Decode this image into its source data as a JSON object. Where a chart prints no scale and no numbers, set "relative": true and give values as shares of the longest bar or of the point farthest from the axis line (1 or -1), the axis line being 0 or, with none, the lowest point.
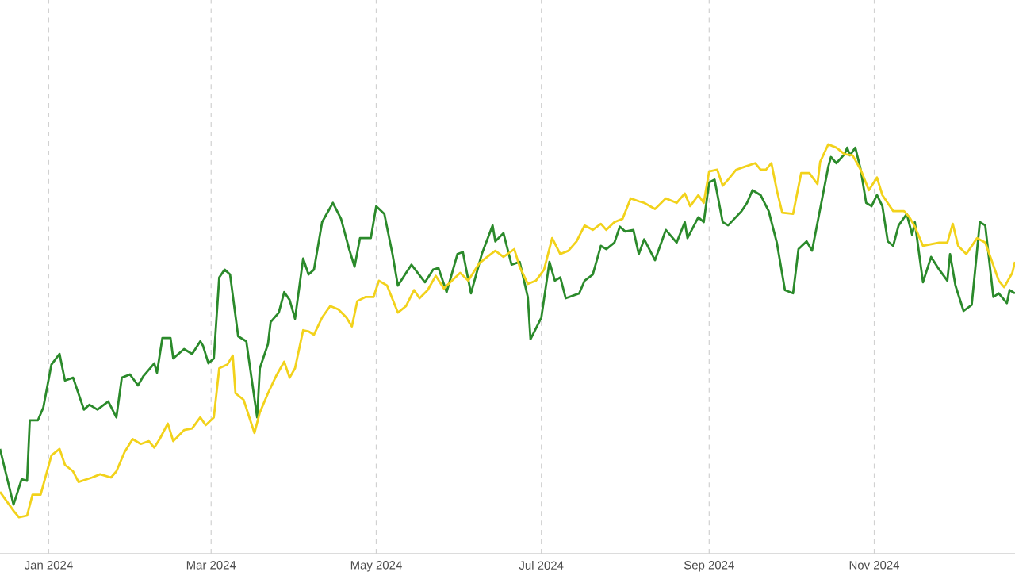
{
  "chart_data": {
    "type": "line",
    "relative": true,
    "grid": true,
    "xlim": [
      "2023-12-14",
      "2024-12-23"
    ],
    "xticks": [
      {
        "value": "2024-01-01",
        "label": "Jan 2024"
      },
      {
        "value": "2024-03-01",
        "label": "Mar 2024"
      },
      {
        "value": "2024-05-01",
        "label": "May 2024"
      },
      {
        "value": "2024-07-01",
        "label": "Jul 2024"
      },
      {
        "value": "2024-09-01",
        "label": "Sep 2024"
      },
      {
        "value": "2024-11-01",
        "label": "Nov 2024"
      }
    ],
    "series": [
      {
        "color": "#2b8a2b",
        "x": [
          "2023-12-14",
          "2023-12-16",
          "2023-12-19",
          "2023-12-22",
          "2023-12-24",
          "2023-12-25",
          "2023-12-28",
          "2023-12-30",
          "2024-01-02",
          "2024-01-05",
          "2024-01-07",
          "2024-01-10",
          "2024-01-14",
          "2024-01-16",
          "2024-01-19",
          "2024-01-23",
          "2024-01-26",
          "2024-01-28",
          "2024-01-31",
          "2024-02-03",
          "2024-02-05",
          "2024-02-09",
          "2024-02-10",
          "2024-02-12",
          "2024-02-15",
          "2024-02-16",
          "2024-02-20",
          "2024-02-23",
          "2024-02-26",
          "2024-02-27",
          "2024-02-29",
          "2024-03-02",
          "2024-03-04",
          "2024-03-06",
          "2024-03-08",
          "2024-03-11",
          "2024-03-14",
          "2024-03-18",
          "2024-03-19",
          "2024-03-22",
          "2024-03-23",
          "2024-03-26",
          "2024-03-28",
          "2024-03-30",
          "2024-04-01",
          "2024-04-04",
          "2024-04-06",
          "2024-04-08",
          "2024-04-11",
          "2024-04-15",
          "2024-04-18",
          "2024-04-21",
          "2024-04-23",
          "2024-04-25",
          "2024-04-29",
          "2024-05-01",
          "2024-05-04",
          "2024-05-07",
          "2024-05-09",
          "2024-05-14",
          "2024-05-19",
          "2024-05-22",
          "2024-05-24",
          "2024-05-27",
          "2024-05-31",
          "2024-06-02",
          "2024-06-05",
          "2024-06-09",
          "2024-06-13",
          "2024-06-14",
          "2024-06-17",
          "2024-06-20",
          "2024-06-23",
          "2024-06-26",
          "2024-06-27",
          "2024-06-29",
          "2024-07-01",
          "2024-07-04",
          "2024-07-06",
          "2024-07-08",
          "2024-07-10",
          "2024-07-15",
          "2024-07-17",
          "2024-07-20",
          "2024-07-23",
          "2024-07-25",
          "2024-07-28",
          "2024-07-30",
          "2024-08-01",
          "2024-08-04",
          "2024-08-06",
          "2024-08-08",
          "2024-08-12",
          "2024-08-16",
          "2024-08-20",
          "2024-08-23",
          "2024-08-24",
          "2024-08-28",
          "2024-08-30",
          "2024-09-01",
          "2024-09-03",
          "2024-09-06",
          "2024-09-08",
          "2024-09-13",
          "2024-09-15",
          "2024-09-17",
          "2024-09-20",
          "2024-09-23",
          "2024-09-26",
          "2024-09-29",
          "2024-10-02",
          "2024-10-04",
          "2024-10-07",
          "2024-10-09",
          "2024-10-12",
          "2024-10-15",
          "2024-10-16",
          "2024-10-18",
          "2024-10-21",
          "2024-10-22",
          "2024-10-23",
          "2024-10-25",
          "2024-10-27",
          "2024-10-29",
          "2024-10-31",
          "2024-11-02",
          "2024-11-04",
          "2024-11-06",
          "2024-11-08",
          "2024-11-10",
          "2024-11-13",
          "2024-11-15",
          "2024-11-16",
          "2024-11-19",
          "2024-11-22",
          "2024-11-25",
          "2024-11-28",
          "2024-11-29",
          "2024-12-01",
          "2024-12-04",
          "2024-12-07",
          "2024-12-10",
          "2024-12-12",
          "2024-12-15",
          "2024-12-17",
          "2024-12-20",
          "2024-12-21",
          "2024-12-23"
        ],
        "values": [
          0.256,
          0.201,
          0.12,
          0.182,
          0.178,
          0.326,
          0.326,
          0.357,
          0.462,
          0.488,
          0.423,
          0.43,
          0.352,
          0.364,
          0.352,
          0.372,
          0.333,
          0.43,
          0.438,
          0.411,
          0.434,
          0.465,
          0.442,
          0.527,
          0.527,
          0.477,
          0.5,
          0.488,
          0.519,
          0.508,
          0.465,
          0.477,
          0.675,
          0.694,
          0.682,
          0.531,
          0.519,
          0.333,
          0.453,
          0.512,
          0.566,
          0.589,
          0.639,
          0.62,
          0.574,
          0.721,
          0.682,
          0.694,
          0.81,
          0.857,
          0.818,
          0.744,
          0.701,
          0.771,
          0.771,
          0.849,
          0.83,
          0.732,
          0.655,
          0.706,
          0.663,
          0.694,
          0.698,
          0.639,
          0.732,
          0.737,
          0.636,
          0.732,
          0.802,
          0.763,
          0.783,
          0.706,
          0.713,
          0.627,
          0.524,
          0.55,
          0.577,
          0.713,
          0.667,
          0.675,
          0.624,
          0.636,
          0.667,
          0.682,
          0.752,
          0.744,
          0.76,
          0.799,
          0.787,
          0.791,
          0.732,
          0.768,
          0.717,
          0.791,
          0.76,
          0.81,
          0.771,
          0.822,
          0.81,
          0.907,
          0.914,
          0.81,
          0.802,
          0.837,
          0.857,
          0.888,
          0.876,
          0.837,
          0.76,
          0.644,
          0.636,
          0.744,
          0.763,
          0.74,
          0.842,
          0.945,
          0.969,
          0.954,
          0.976,
          0.992,
          0.973,
          0.992,
          0.938,
          0.857,
          0.849,
          0.876,
          0.849,
          0.763,
          0.752,
          0.802,
          0.83,
          0.779,
          0.81,
          0.663,
          0.725,
          0.694,
          0.667,
          0.732,
          0.655,
          0.593,
          0.608,
          0.81,
          0.802,
          0.627,
          0.636,
          0.612,
          0.644,
          0.636
        ]
      },
      {
        "color": "#f2d21b",
        "x": [
          "2023-12-14",
          "2023-12-19",
          "2023-12-21",
          "2023-12-24",
          "2023-12-26",
          "2023-12-29",
          "2024-01-02",
          "2024-01-05",
          "2024-01-07",
          "2024-01-10",
          "2024-01-12",
          "2024-01-17",
          "2024-01-20",
          "2024-01-24",
          "2024-01-26",
          "2024-01-29",
          "2024-02-01",
          "2024-02-04",
          "2024-02-07",
          "2024-02-09",
          "2024-02-11",
          "2024-02-14",
          "2024-02-16",
          "2024-02-20",
          "2024-02-23",
          "2024-02-26",
          "2024-02-28",
          "2024-03-02",
          "2024-03-04",
          "2024-03-07",
          "2024-03-09",
          "2024-03-10",
          "2024-03-13",
          "2024-03-17",
          "2024-03-19",
          "2024-03-22",
          "2024-03-25",
          "2024-03-28",
          "2024-03-30",
          "2024-04-01",
          "2024-04-04",
          "2024-04-06",
          "2024-04-08",
          "2024-04-11",
          "2024-04-14",
          "2024-04-17",
          "2024-04-20",
          "2024-04-22",
          "2024-04-24",
          "2024-04-27",
          "2024-04-30",
          "2024-05-02",
          "2024-05-05",
          "2024-05-09",
          "2024-05-12",
          "2024-05-15",
          "2024-05-17",
          "2024-05-20",
          "2024-05-23",
          "2024-05-26",
          "2024-05-29",
          "2024-06-01",
          "2024-06-04",
          "2024-06-08",
          "2024-06-11",
          "2024-06-14",
          "2024-06-17",
          "2024-06-21",
          "2024-06-23",
          "2024-06-26",
          "2024-06-29",
          "2024-07-02",
          "2024-07-05",
          "2024-07-08",
          "2024-07-11",
          "2024-07-14",
          "2024-07-17",
          "2024-07-20",
          "2024-07-23",
          "2024-07-25",
          "2024-07-28",
          "2024-07-31",
          "2024-08-03",
          "2024-08-06",
          "2024-08-08",
          "2024-08-12",
          "2024-08-16",
          "2024-08-20",
          "2024-08-23",
          "2024-08-25",
          "2024-08-28",
          "2024-08-30",
          "2024-09-01",
          "2024-09-04",
          "2024-09-06",
          "2024-09-08",
          "2024-09-11",
          "2024-09-14",
          "2024-09-18",
          "2024-09-20",
          "2024-09-22",
          "2024-09-24",
          "2024-09-26",
          "2024-09-28",
          "2024-10-02",
          "2024-10-05",
          "2024-10-08",
          "2024-10-11",
          "2024-10-12",
          "2024-10-15",
          "2024-10-18",
          "2024-10-21",
          "2024-10-24",
          "2024-10-27",
          "2024-10-30",
          "2024-11-02",
          "2024-11-04",
          "2024-11-08",
          "2024-11-12",
          "2024-11-14",
          "2024-11-16",
          "2024-11-19",
          "2024-11-25",
          "2024-11-28",
          "2024-11-30",
          "2024-12-02",
          "2024-12-05",
          "2024-12-09",
          "2024-12-12",
          "2024-12-17",
          "2024-12-19",
          "2024-12-22",
          "2024-12-23"
        ],
        "values": [
          0.151,
          0.105,
          0.089,
          0.093,
          0.144,
          0.144,
          0.24,
          0.256,
          0.217,
          0.201,
          0.175,
          0.186,
          0.194,
          0.186,
          0.201,
          0.248,
          0.28,
          0.268,
          0.275,
          0.259,
          0.28,
          0.318,
          0.275,
          0.302,
          0.306,
          0.333,
          0.314,
          0.333,
          0.453,
          0.462,
          0.484,
          0.392,
          0.376,
          0.295,
          0.345,
          0.392,
          0.434,
          0.469,
          0.43,
          0.453,
          0.546,
          0.543,
          0.535,
          0.577,
          0.605,
          0.597,
          0.577,
          0.555,
          0.617,
          0.627,
          0.627,
          0.667,
          0.655,
          0.589,
          0.605,
          0.644,
          0.624,
          0.644,
          0.679,
          0.648,
          0.667,
          0.686,
          0.667,
          0.709,
          0.725,
          0.74,
          0.725,
          0.744,
          0.701,
          0.659,
          0.667,
          0.694,
          0.771,
          0.732,
          0.74,
          0.763,
          0.802,
          0.791,
          0.806,
          0.791,
          0.81,
          0.818,
          0.868,
          0.861,
          0.857,
          0.842,
          0.868,
          0.857,
          0.88,
          0.849,
          0.876,
          0.857,
          0.934,
          0.938,
          0.899,
          0.914,
          0.938,
          0.945,
          0.954,
          0.938,
          0.938,
          0.954,
          0.888,
          0.833,
          0.83,
          0.93,
          0.93,
          0.903,
          0.957,
          1,
          0.992,
          0.976,
          0.973,
          0.938,
          0.888,
          0.919,
          0.876,
          0.837,
          0.837,
          0.822,
          0.799,
          0.752,
          0.76,
          0.76,
          0.806,
          0.752,
          0.732,
          0.771,
          0.76,
          0.667,
          0.651,
          0.686,
          0.713
        ]
      }
    ]
  }
}
